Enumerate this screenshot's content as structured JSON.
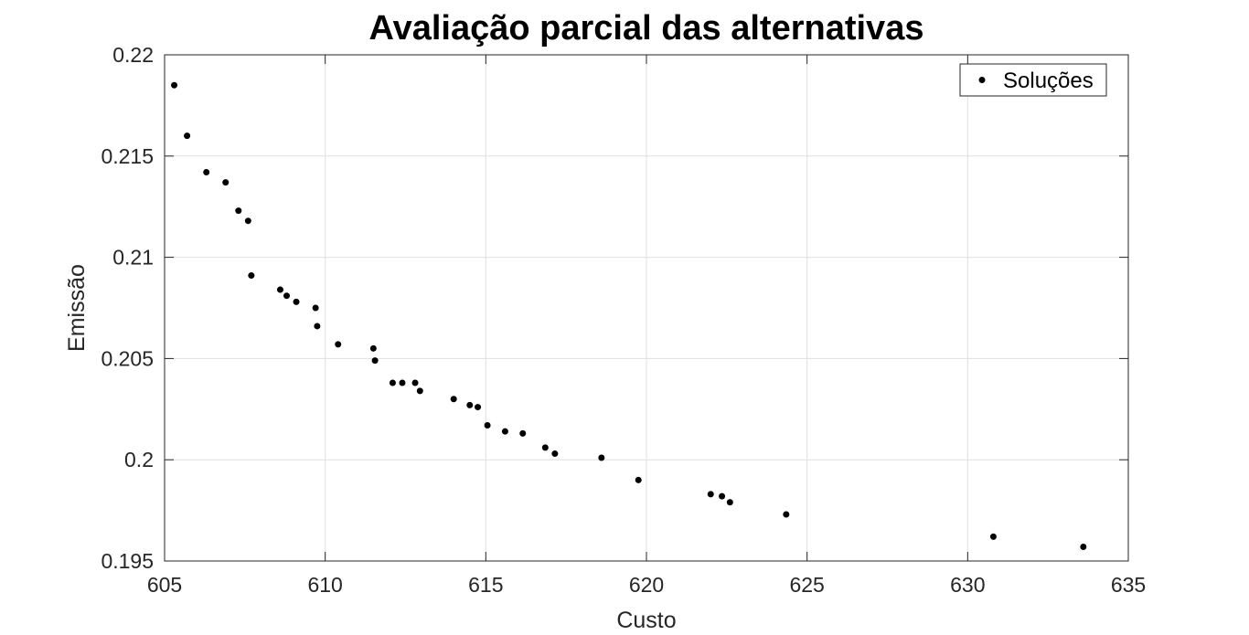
{
  "chart_data": {
    "type": "scatter",
    "title": "Avaliação parcial das alternativas",
    "xlabel": "Custo",
    "ylabel": "Emissão",
    "xlim": [
      605,
      635
    ],
    "ylim": [
      0.195,
      0.22
    ],
    "xticks": [
      "605",
      "610",
      "615",
      "620",
      "625",
      "630",
      "635"
    ],
    "yticks": [
      "0.195",
      "0.2",
      "0.205",
      "0.21",
      "0.215",
      "0.22"
    ],
    "grid": true,
    "legend_position": "top-right",
    "series": [
      {
        "name": "Soluções",
        "color": "#000000",
        "marker": "dot",
        "x": [
          605.3,
          605.7,
          606.3,
          606.9,
          607.3,
          607.6,
          607.7,
          608.6,
          608.8,
          609.1,
          609.7,
          609.75,
          610.4,
          611.5,
          611.55,
          612.1,
          612.4,
          612.8,
          612.95,
          614.0,
          614.5,
          614.75,
          615.05,
          615.6,
          616.15,
          616.85,
          617.15,
          618.6,
          619.75,
          622.0,
          622.35,
          622.6,
          624.35,
          630.8,
          633.6
        ],
        "y": [
          0.2185,
          0.216,
          0.2142,
          0.2137,
          0.2123,
          0.2118,
          0.2091,
          0.2084,
          0.2081,
          0.2078,
          0.2075,
          0.2066,
          0.2057,
          0.2055,
          0.2049,
          0.2038,
          0.2038,
          0.2038,
          0.2034,
          0.203,
          0.2027,
          0.2026,
          0.2017,
          0.2014,
          0.2013,
          0.2006,
          0.2003,
          0.2001,
          0.199,
          0.1983,
          0.1982,
          0.1979,
          0.1973,
          0.1962,
          0.1957
        ]
      }
    ]
  }
}
